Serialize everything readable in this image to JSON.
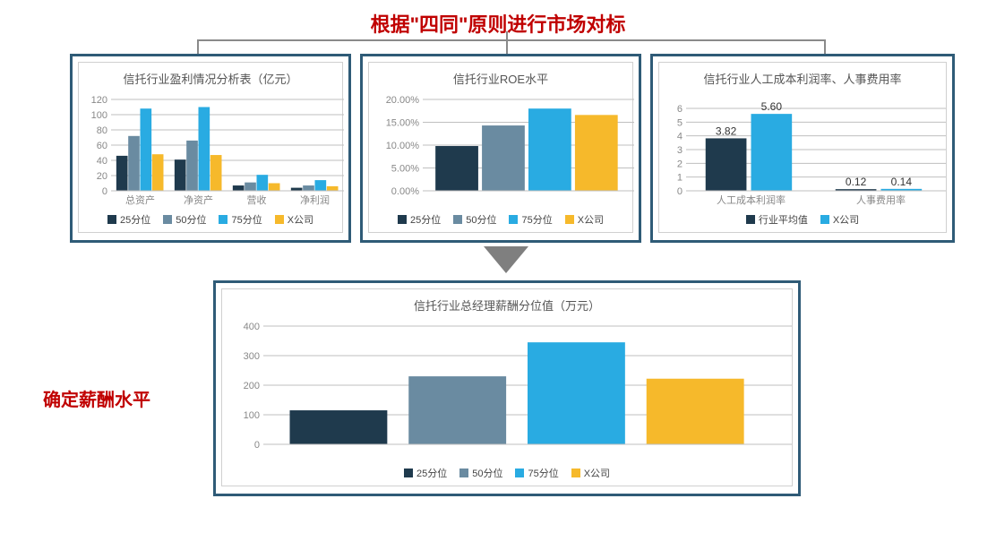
{
  "colors": {
    "series25": "#1f3a4d",
    "series50": "#6a8ba1",
    "series75": "#29abe2",
    "seriesX": "#f6b92b",
    "axis": "#bfbfbf",
    "tickText": "#888888",
    "titleText": "#555555",
    "panelBorder": "#2f5b77",
    "connector": "#8a8a8a",
    "red": "#c00000"
  },
  "mainTitle": "根据\"四同\"原则进行市场对标",
  "bottomLabel": "确定薪酬水平",
  "legendLabels": {
    "p25": "25分位",
    "p50": "50分位",
    "p75": "75分位",
    "x": "X公司",
    "avg": "行业平均值",
    "xcomp": "X公司"
  },
  "chart1": {
    "title": "信托行业盈利情况分析表（亿元）",
    "type": "grouped-bar",
    "ylim": [
      0,
      120
    ],
    "ystep": 20,
    "categories": [
      "总资产",
      "净资产",
      "营收",
      "净利润"
    ],
    "series": [
      {
        "key": "p25",
        "values": [
          46,
          41,
          7,
          4
        ]
      },
      {
        "key": "p50",
        "values": [
          72,
          66,
          11,
          7
        ]
      },
      {
        "key": "p75",
        "values": [
          108,
          110,
          21,
          14
        ]
      },
      {
        "key": "x",
        "values": [
          48,
          47,
          10,
          6
        ]
      }
    ]
  },
  "chart2": {
    "title": "信托行业ROE水平",
    "type": "bar",
    "ylim": [
      0,
      20
    ],
    "ystep": 5,
    "yfmt": "pct",
    "categories": [
      ""
    ],
    "series": [
      {
        "key": "p25",
        "values": [
          9.8
        ]
      },
      {
        "key": "p50",
        "values": [
          14.3
        ]
      },
      {
        "key": "p75",
        "values": [
          18.0
        ]
      },
      {
        "key": "x",
        "values": [
          16.6
        ]
      }
    ]
  },
  "chart3": {
    "title": "信托行业人工成本利润率、人事费用率",
    "type": "grouped-bar-labeled",
    "ylim": [
      0,
      6
    ],
    "ystep": 1,
    "categories": [
      "人工成本利润率",
      "人事费用率"
    ],
    "series": [
      {
        "key": "avg",
        "values": [
          3.82,
          0.12
        ],
        "labels": [
          "3.82",
          "0.12"
        ]
      },
      {
        "key": "xcomp",
        "values": [
          5.6,
          0.14
        ],
        "labels": [
          "5.60",
          "0.14"
        ]
      }
    ]
  },
  "chart4": {
    "title": "信托行业总经理薪酬分位值（万元）",
    "type": "bar",
    "ylim": [
      0,
      400
    ],
    "ystep": 100,
    "categories": [
      ""
    ],
    "series": [
      {
        "key": "p25",
        "values": [
          115
        ]
      },
      {
        "key": "p50",
        "values": [
          230
        ]
      },
      {
        "key": "p75",
        "values": [
          345
        ]
      },
      {
        "key": "x",
        "values": [
          222
        ]
      }
    ]
  }
}
